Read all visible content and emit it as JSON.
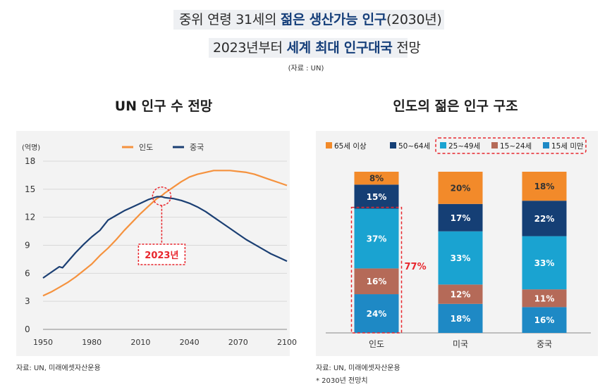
{
  "header": {
    "line1_a": "중위 연령 31세의 ",
    "line1_em": "젊은 생산가능 인구",
    "line1_b": "(2030년)",
    "line2_a": "2023년부터 ",
    "line2_em": "세계 최대 인구대국",
    "line2_b": " 전망",
    "source": "(자료 : UN)"
  },
  "left_title": "UN 인구 수 전망",
  "right_title": "인도의 젊은 인구 구조",
  "footer_left": "자료: UN, 미래에셋자산운용",
  "footer_right_1": "자료: UN, 미래에셋자산운용",
  "footer_right_2": "* 2030년 전망치",
  "colors": {
    "india": "#f5923e",
    "china": "#1b3f73",
    "age65": "#f28a2a",
    "age50": "#153f75",
    "age25": "#1aa3d1",
    "age15": "#b56a58",
    "age0": "#1e89c5",
    "red": "#e8262d"
  },
  "chart_data": [
    {
      "type": "line",
      "unit_label": "(억명)",
      "ylim": [
        0,
        18
      ],
      "yticks": [
        "0",
        "3",
        "6",
        "9",
        "12",
        "15",
        "18"
      ],
      "ytick_values": [
        0,
        3,
        6,
        9,
        12,
        15,
        18
      ],
      "xlim": [
        1950,
        2100
      ],
      "xticks": [
        "1950",
        "1980",
        "2010",
        "2040",
        "2070",
        "2100"
      ],
      "xtick_values": [
        1950,
        1980,
        2010,
        2040,
        2070,
        2100
      ],
      "annotation": "2023년",
      "annotation_x": 2023,
      "series": [
        {
          "name": "인도",
          "color": "#f5923e",
          "x": [
            1950,
            1955,
            1960,
            1965,
            1970,
            1975,
            1980,
            1985,
            1990,
            1995,
            2000,
            2005,
            2010,
            2015,
            2020,
            2023,
            2025,
            2030,
            2035,
            2040,
            2045,
            2050,
            2055,
            2060,
            2065,
            2070,
            2075,
            2080,
            2085,
            2090,
            2095,
            2100
          ],
          "values": [
            3.6,
            4.0,
            4.5,
            5.0,
            5.6,
            6.3,
            7.0,
            7.9,
            8.7,
            9.6,
            10.6,
            11.5,
            12.4,
            13.2,
            14.0,
            14.3,
            14.6,
            15.2,
            15.8,
            16.3,
            16.6,
            16.8,
            17.0,
            17.0,
            17.0,
            16.9,
            16.8,
            16.6,
            16.3,
            16.0,
            15.7,
            15.4
          ]
        },
        {
          "name": "중국",
          "color": "#1b3f73",
          "x": [
            1950,
            1955,
            1960,
            1962,
            1965,
            1970,
            1975,
            1980,
            1985,
            1990,
            1995,
            2000,
            2005,
            2010,
            2015,
            2020,
            2023,
            2025,
            2030,
            2035,
            2040,
            2045,
            2050,
            2055,
            2060,
            2065,
            2070,
            2075,
            2080,
            2085,
            2090,
            2095,
            2100
          ],
          "values": [
            5.5,
            6.1,
            6.7,
            6.6,
            7.2,
            8.2,
            9.1,
            9.9,
            10.6,
            11.7,
            12.2,
            12.7,
            13.1,
            13.5,
            13.9,
            14.2,
            14.2,
            14.1,
            14.0,
            13.8,
            13.5,
            13.1,
            12.6,
            12.0,
            11.4,
            10.8,
            10.2,
            9.6,
            9.1,
            8.6,
            8.1,
            7.7,
            7.3
          ]
        }
      ]
    },
    {
      "type": "bar",
      "stacked": true,
      "categories": [
        "인도",
        "미국",
        "중국"
      ],
      "legend": [
        "65세 이상",
        "50~64세",
        "25~49세",
        "15~24세",
        "15세 미만"
      ],
      "series": [
        {
          "name": "15세 미만",
          "color": "#1e89c5",
          "values": [
            24,
            18,
            16
          ],
          "labels": [
            "24%",
            "18%",
            "16%"
          ]
        },
        {
          "name": "15~24세",
          "color": "#b56a58",
          "values": [
            16,
            12,
            11
          ],
          "labels": [
            "16%",
            "12%",
            "11%"
          ]
        },
        {
          "name": "25~49세",
          "color": "#1aa3d1",
          "values": [
            37,
            33,
            33
          ],
          "labels": [
            "37%",
            "33%",
            "33%"
          ]
        },
        {
          "name": "50~64세",
          "color": "#153f75",
          "values": [
            15,
            17,
            22
          ],
          "labels": [
            "15%",
            "17%",
            "22%"
          ]
        },
        {
          "name": "65세 이상",
          "color": "#f28a2a",
          "values": [
            8,
            20,
            18
          ],
          "labels": [
            "8%",
            "20%",
            "18%"
          ]
        }
      ],
      "annotation": "77%"
    }
  ]
}
